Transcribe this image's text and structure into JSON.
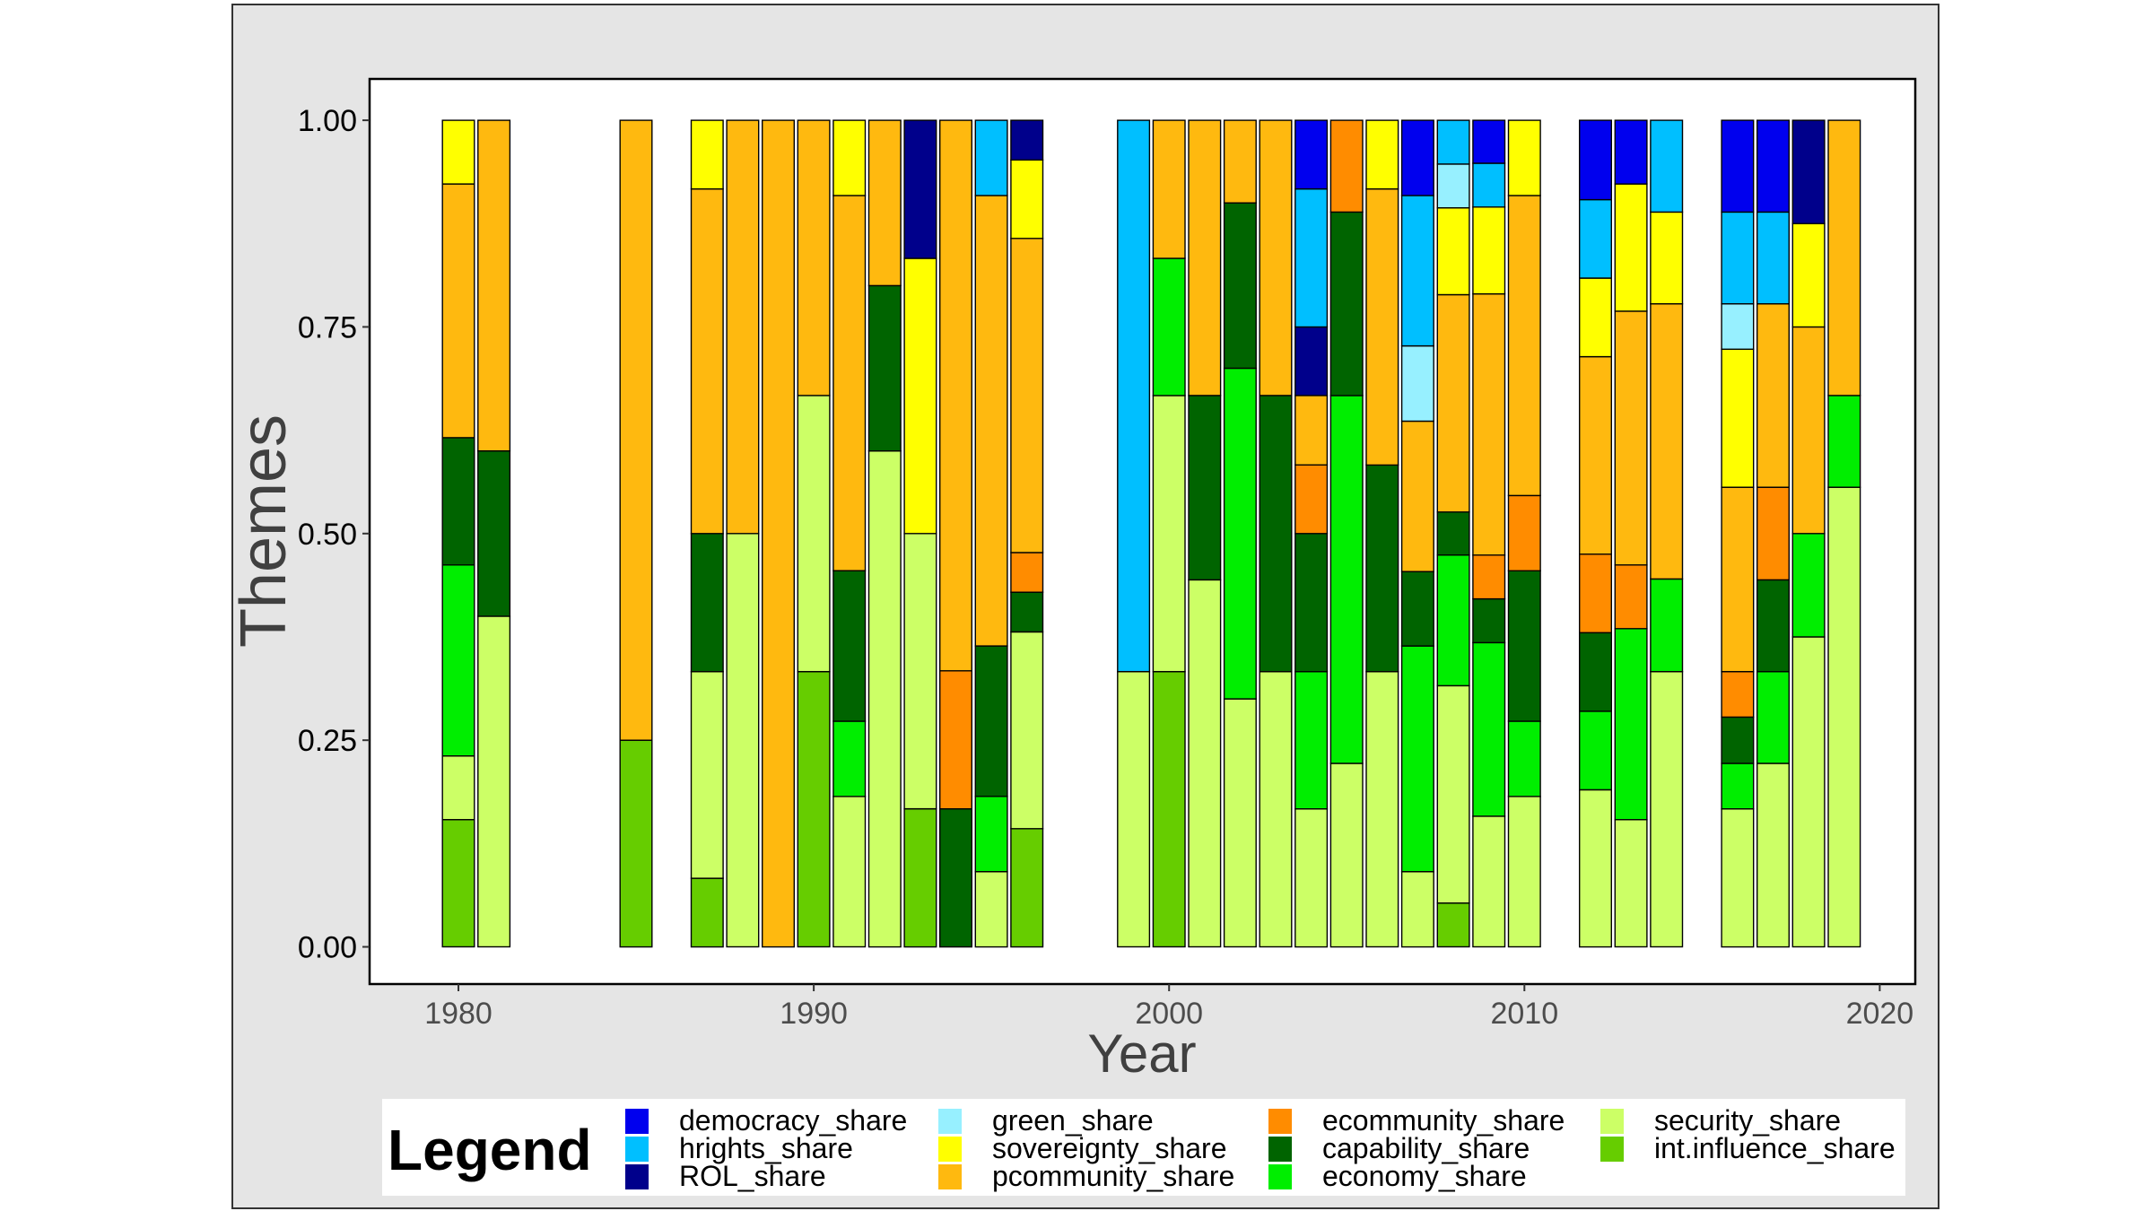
{
  "chart_data": {
    "type": "bar",
    "stacked": true,
    "xlabel": "Year",
    "ylabel": "Themes",
    "xlim": [
      1977.5,
      2021
    ],
    "ylim": [
      -0.045,
      1.05
    ],
    "x_ticks": [
      1980,
      1990,
      2000,
      2010,
      2020
    ],
    "y_ticks": [
      0.0,
      0.25,
      0.5,
      0.75,
      1.0
    ],
    "y_tick_labels": [
      "0.00",
      "0.25",
      "0.50",
      "0.75",
      "1.00"
    ],
    "grid": false,
    "legend": {
      "title": "Legend",
      "position": "bottom",
      "columns": [
        [
          "democracy_share",
          "hrights_share",
          "ROL_share"
        ],
        [
          "green_share",
          "sovereignty_share",
          "pcommunity_share"
        ],
        [
          "ecommunity_share",
          "capability_share",
          "economy_share"
        ],
        [
          "security_share",
          "int.influence_share"
        ]
      ]
    },
    "series": [
      {
        "name": "democracy_share",
        "color": "#0000ee"
      },
      {
        "name": "hrights_share",
        "color": "#00bfff"
      },
      {
        "name": "ROL_share",
        "color": "#00008b"
      },
      {
        "name": "green_share",
        "color": "#97f0ff"
      },
      {
        "name": "sovereignty_share",
        "color": "#ffff00"
      },
      {
        "name": "pcommunity_share",
        "color": "#ffb90f"
      },
      {
        "name": "ecommunity_share",
        "color": "#ff8c00"
      },
      {
        "name": "capability_share",
        "color": "#006400"
      },
      {
        "name": "economy_share",
        "color": "#00ee00"
      },
      {
        "name": "security_share",
        "color": "#ccff66"
      },
      {
        "name": "int.influence_share",
        "color": "#66cd00"
      }
    ],
    "stack_order_bottom_to_top": [
      "int.influence_share",
      "security_share",
      "economy_share",
      "capability_share",
      "ecommunity_share",
      "pcommunity_share",
      "sovereignty_share",
      "green_share",
      "ROL_share",
      "hrights_share",
      "democracy_share"
    ],
    "bars": [
      {
        "x": 1980,
        "values": {
          "int.influence_share": 0.154,
          "security_share": 0.077,
          "economy_share": 0.231,
          "capability_share": 0.154,
          "pcommunity_share": 0.307,
          "sovereignty_share": 0.077
        }
      },
      {
        "x": 1981,
        "values": {
          "security_share": 0.4,
          "capability_share": 0.2,
          "pcommunity_share": 0.4
        }
      },
      {
        "x": 1985,
        "values": {
          "int.influence_share": 0.25,
          "pcommunity_share": 0.75
        }
      },
      {
        "x": 1987,
        "values": {
          "int.influence_share": 0.083,
          "security_share": 0.25,
          "capability_share": 0.167,
          "pcommunity_share": 0.417,
          "sovereignty_share": 0.083
        }
      },
      {
        "x": 1988,
        "values": {
          "security_share": 0.5,
          "pcommunity_share": 0.5
        }
      },
      {
        "x": 1989,
        "values": {
          "pcommunity_share": 1.0
        }
      },
      {
        "x": 1990,
        "values": {
          "int.influence_share": 0.333,
          "security_share": 0.334,
          "pcommunity_share": 0.333
        }
      },
      {
        "x": 1991,
        "values": {
          "security_share": 0.182,
          "economy_share": 0.091,
          "capability_share": 0.182,
          "pcommunity_share": 0.454,
          "sovereignty_share": 0.091
        }
      },
      {
        "x": 1992,
        "values": {
          "security_share": 0.6,
          "capability_share": 0.2,
          "pcommunity_share": 0.2
        }
      },
      {
        "x": 1993,
        "values": {
          "int.influence_share": 0.167,
          "security_share": 0.333,
          "sovereignty_share": 0.333,
          "ROL_share": 0.167
        }
      },
      {
        "x": 1994,
        "values": {
          "capability_share": 0.167,
          "ecommunity_share": 0.167,
          "pcommunity_share": 0.666
        }
      },
      {
        "x": 1995,
        "values": {
          "security_share": 0.091,
          "economy_share": 0.091,
          "capability_share": 0.182,
          "pcommunity_share": 0.545,
          "hrights_share": 0.091
        }
      },
      {
        "x": 1996,
        "values": {
          "int.influence_share": 0.143,
          "security_share": 0.238,
          "capability_share": 0.048,
          "ecommunity_share": 0.048,
          "pcommunity_share": 0.38,
          "sovereignty_share": 0.095,
          "ROL_share": 0.048
        }
      },
      {
        "x": 1999,
        "values": {
          "security_share": 0.333,
          "hrights_share": 0.667
        }
      },
      {
        "x": 2000,
        "values": {
          "int.influence_share": 0.333,
          "security_share": 0.334,
          "economy_share": 0.166,
          "pcommunity_share": 0.167
        }
      },
      {
        "x": 2001,
        "values": {
          "security_share": 0.444,
          "capability_share": 0.223,
          "pcommunity_share": 0.333
        }
      },
      {
        "x": 2002,
        "values": {
          "security_share": 0.3,
          "economy_share": 0.4,
          "capability_share": 0.2,
          "pcommunity_share": 0.1
        }
      },
      {
        "x": 2003,
        "values": {
          "security_share": 0.333,
          "capability_share": 0.334,
          "pcommunity_share": 0.333
        }
      },
      {
        "x": 2004,
        "values": {
          "security_share": 0.167,
          "economy_share": 0.166,
          "capability_share": 0.167,
          "ecommunity_share": 0.083,
          "pcommunity_share": 0.084,
          "ROL_share": 0.083,
          "hrights_share": 0.167,
          "democracy_share": 0.083
        }
      },
      {
        "x": 2005,
        "values": {
          "security_share": 0.222,
          "economy_share": 0.445,
          "capability_share": 0.222,
          "ecommunity_share": 0.111
        }
      },
      {
        "x": 2006,
        "values": {
          "security_share": 0.333,
          "capability_share": 0.25,
          "pcommunity_share": 0.334,
          "sovereignty_share": 0.083
        }
      },
      {
        "x": 2007,
        "values": {
          "security_share": 0.091,
          "economy_share": 0.273,
          "capability_share": 0.09,
          "pcommunity_share": 0.182,
          "green_share": 0.091,
          "hrights_share": 0.182,
          "democracy_share": 0.091
        }
      },
      {
        "x": 2008,
        "values": {
          "int.influence_share": 0.053,
          "security_share": 0.263,
          "economy_share": 0.158,
          "capability_share": 0.052,
          "pcommunity_share": 0.263,
          "sovereignty_share": 0.105,
          "green_share": 0.053,
          "hrights_share": 0.053
        }
      },
      {
        "x": 2009,
        "values": {
          "security_share": 0.158,
          "economy_share": 0.21,
          "capability_share": 0.053,
          "ecommunity_share": 0.053,
          "pcommunity_share": 0.316,
          "sovereignty_share": 0.105,
          "hrights_share": 0.053,
          "democracy_share": 0.052
        }
      },
      {
        "x": 2010,
        "values": {
          "security_share": 0.182,
          "economy_share": 0.091,
          "capability_share": 0.182,
          "ecommunity_share": 0.091,
          "pcommunity_share": 0.363,
          "sovereignty_share": 0.091
        }
      },
      {
        "x": 2012,
        "values": {
          "security_share": 0.19,
          "economy_share": 0.095,
          "capability_share": 0.095,
          "ecommunity_share": 0.095,
          "pcommunity_share": 0.239,
          "sovereignty_share": 0.095,
          "hrights_share": 0.095,
          "democracy_share": 0.096
        }
      },
      {
        "x": 2013,
        "values": {
          "security_share": 0.154,
          "economy_share": 0.231,
          "ecommunity_share": 0.077,
          "pcommunity_share": 0.307,
          "sovereignty_share": 0.154,
          "democracy_share": 0.077
        }
      },
      {
        "x": 2014,
        "values": {
          "security_share": 0.333,
          "economy_share": 0.112,
          "pcommunity_share": 0.333,
          "sovereignty_share": 0.111,
          "hrights_share": 0.111
        }
      },
      {
        "x": 2016,
        "values": {
          "security_share": 0.167,
          "economy_share": 0.055,
          "capability_share": 0.056,
          "ecommunity_share": 0.055,
          "pcommunity_share": 0.223,
          "sovereignty_share": 0.167,
          "green_share": 0.055,
          "hrights_share": 0.111,
          "democracy_share": 0.111
        }
      },
      {
        "x": 2017,
        "values": {
          "security_share": 0.222,
          "economy_share": 0.111,
          "capability_share": 0.111,
          "ecommunity_share": 0.112,
          "pcommunity_share": 0.222,
          "hrights_share": 0.111,
          "democracy_share": 0.111
        }
      },
      {
        "x": 2018,
        "values": {
          "security_share": 0.375,
          "economy_share": 0.125,
          "pcommunity_share": 0.25,
          "sovereignty_share": 0.125,
          "ROL_share": 0.125
        }
      },
      {
        "x": 2019,
        "values": {
          "security_share": 0.556,
          "economy_share": 0.111,
          "pcommunity_share": 0.333
        }
      }
    ]
  }
}
